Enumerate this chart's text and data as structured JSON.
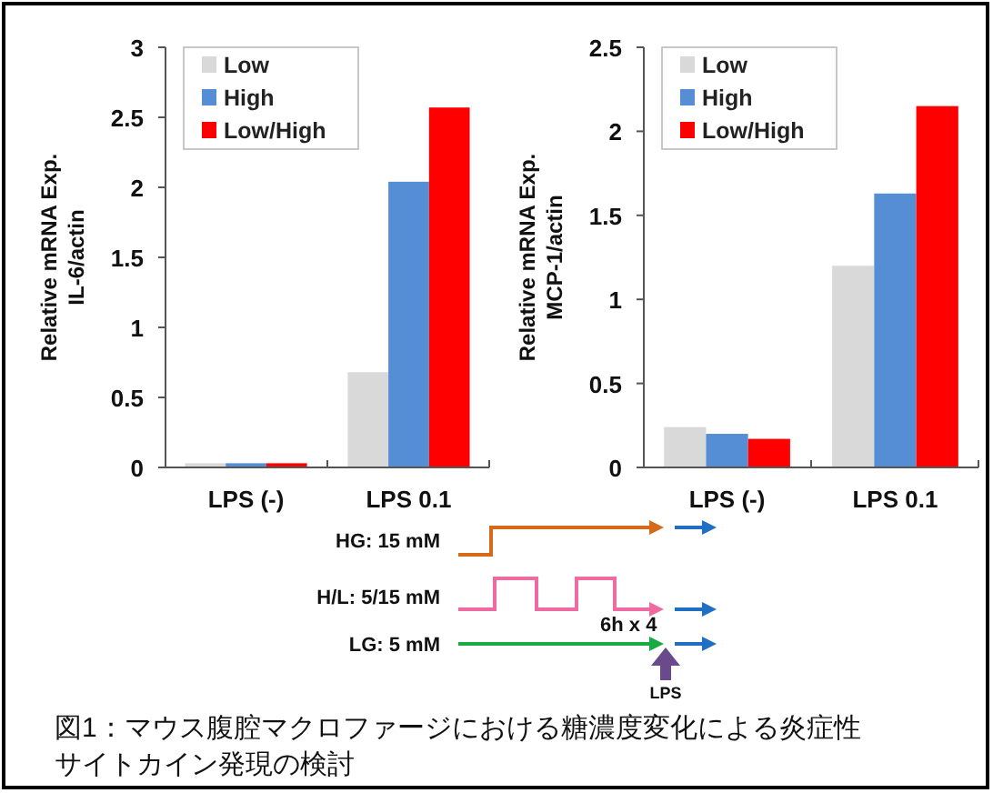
{
  "chart_data": [
    {
      "type": "bar",
      "ylabel": "Relative mRNA Exp.\nIL-6/actin",
      "categories": [
        "LPS (-)",
        "LPS 0.1"
      ],
      "series": [
        {
          "name": "Low",
          "color": "#d9d9d9",
          "values": [
            0.03,
            0.68
          ]
        },
        {
          "name": "High",
          "color": "#558ed5",
          "values": [
            0.03,
            2.04
          ]
        },
        {
          "name": "Low/High",
          "color": "#ff0000",
          "values": [
            0.03,
            2.57
          ]
        }
      ],
      "ylim": [
        0,
        3
      ],
      "yticks": [
        0,
        0.5,
        1,
        1.5,
        2,
        2.5,
        3
      ],
      "legend": "top left"
    },
    {
      "type": "bar",
      "ylabel": "Relative mRNA Exp.\nMCP-1/actin",
      "categories": [
        "LPS (-)",
        "LPS 0.1"
      ],
      "series": [
        {
          "name": "Low",
          "color": "#d9d9d9",
          "values": [
            0.24,
            1.2
          ]
        },
        {
          "name": "High",
          "color": "#558ed5",
          "values": [
            0.2,
            1.63
          ]
        },
        {
          "name": "Low/High",
          "color": "#ff0000",
          "values": [
            0.17,
            2.15
          ]
        }
      ],
      "ylim": [
        0,
        2.5
      ],
      "yticks": [
        0,
        0.5,
        1,
        1.5,
        2,
        2.5
      ],
      "legend": "top left"
    },
    {
      "type": "other",
      "annotations": [
        "HG: 15 mM",
        "H/L: 5/15 mM",
        "LG: 5 mM",
        "6h x 4",
        "LPS",
        "図1：マウス腹腔マクロファージにおける糖濃度変化による炎症性サイトカイン発現の検討"
      ]
    }
  ]
}
